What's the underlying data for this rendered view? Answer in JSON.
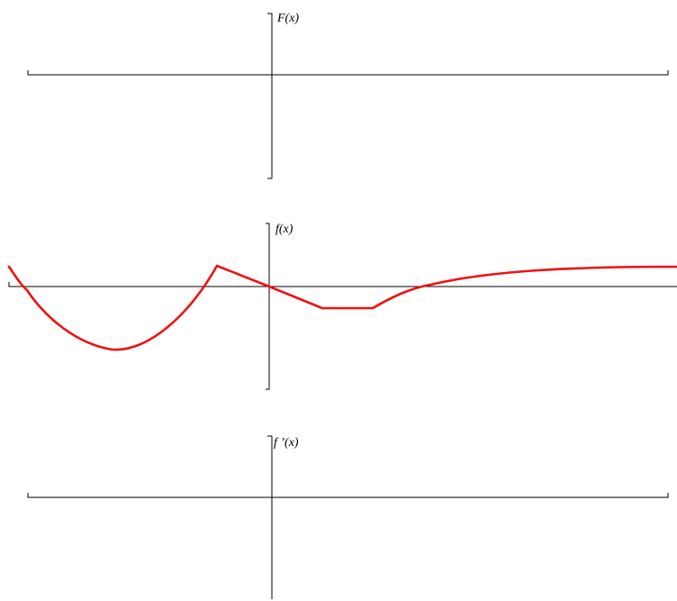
{
  "panels": [
    {
      "id": "F",
      "label": "F(x)"
    },
    {
      "id": "f",
      "label": "f(x)"
    },
    {
      "id": "fprime",
      "label": "f ’(x)"
    }
  ],
  "curve_color": "#ee1111",
  "axis_color": "#000000"
}
